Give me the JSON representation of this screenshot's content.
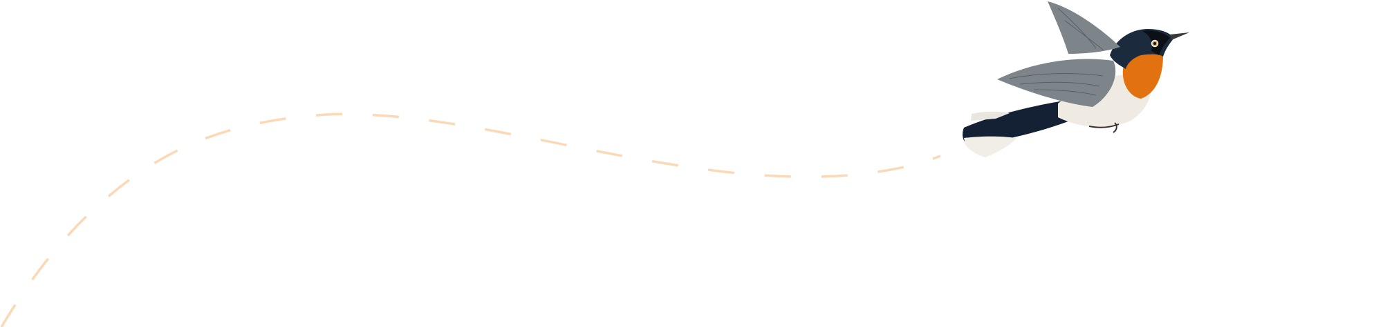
{
  "illustration": {
    "subject": "bird-in-flight",
    "flight_path_style": "dashed",
    "colors": {
      "background": "#ffffff",
      "flight_path": "#fbd8b6",
      "throat": "#e2710f",
      "head": "#1c2a3e",
      "tail": "#142033",
      "wing": "#7d848a",
      "belly": "#efebe2"
    }
  }
}
